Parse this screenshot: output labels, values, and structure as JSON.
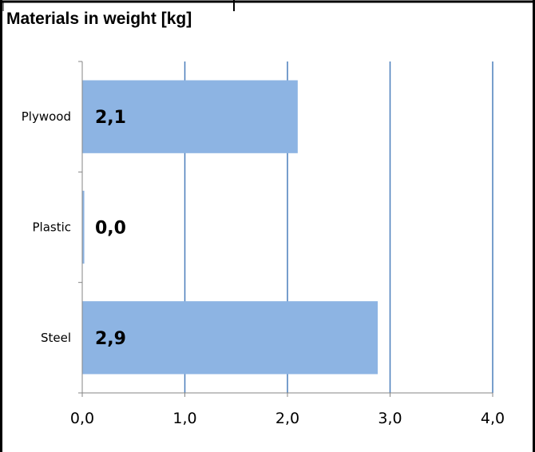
{
  "title": "Materials in weight [kg]",
  "colors": {
    "bar": "#8DB4E3",
    "gridline": "#4A7EBB",
    "axis": "#868686",
    "frame": "#000000",
    "text": "#000000"
  },
  "chart_data": {
    "type": "bar",
    "orientation": "horizontal",
    "title": "Materials in weight [kg]",
    "categories": [
      "Plywood",
      "Plastic",
      "Steel"
    ],
    "values": [
      2.1,
      0.02,
      2.88
    ],
    "data_labels": [
      "2,1",
      "0,0",
      "2,9"
    ],
    "x_ticks": [
      0,
      1,
      2,
      3,
      4
    ],
    "x_tick_labels": [
      "0,0",
      "1,0",
      "2,0",
      "3,0",
      "4,0"
    ],
    "xlim": [
      0,
      4
    ],
    "xlabel": "",
    "ylabel": "",
    "grid": true,
    "legend": "none"
  }
}
